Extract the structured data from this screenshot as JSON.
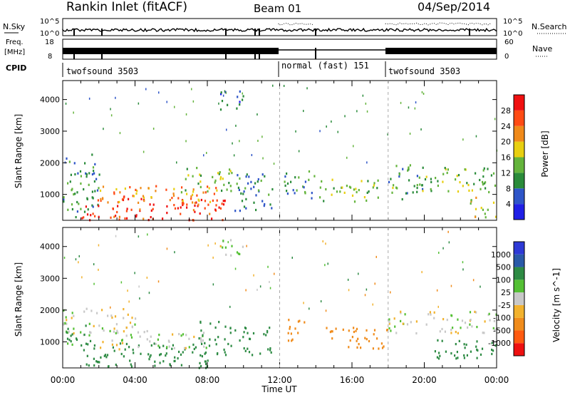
{
  "header": {
    "title": "Rankin Inlet (fitACF)",
    "beam": "Beam 01",
    "date": "04/Sep/2014"
  },
  "top_panels": {
    "nsky_label": "N.Sky",
    "nsky_ticks": [
      "10^5",
      "10^0"
    ],
    "nsearch_label": "N.Search",
    "nsearch_ticks": [
      "10^5",
      "10^0"
    ],
    "freq_label_line1": "Freq.",
    "freq_label_line2": "[MHz]",
    "freq_ticks": [
      "18",
      "8"
    ],
    "nave_label": "Nave",
    "nave_ticks": [
      "60",
      "0"
    ],
    "cpid_label": "CPID",
    "cpid_segments": [
      {
        "text": "twofsound 3503",
        "start_hr": 0,
        "end_hr": 12
      },
      {
        "text": "normal (fast) 151",
        "start_hr": 12,
        "end_hr": 18
      },
      {
        "text": "twofsound 3503",
        "start_hr": 18,
        "end_hr": 24
      }
    ]
  },
  "colors": {
    "power": [
      "#1f1fe6",
      "#2e55c8",
      "#2a8b3a",
      "#64b43c",
      "#e8cf10",
      "#f08a1a",
      "#ff4b14",
      "#f01010"
    ],
    "velocity": [
      "#ee1010",
      "#ff5a10",
      "#f08c1c",
      "#f2b22e",
      "#c8c8c8",
      "#54c034",
      "#2e8b44",
      "#2a5aa8",
      "#2e3ad6"
    ],
    "ground_scatter": "#bdbdb8"
  },
  "chart_data": [
    {
      "type": "heatmap",
      "name": "power",
      "ylabel": "Slant Range [km]",
      "xlim": [
        0,
        24
      ],
      "ylim": [
        180,
        4600
      ],
      "yticks": [
        1000,
        2000,
        3000,
        4000
      ],
      "ytick_labels": [
        "1000",
        "2000",
        "3000",
        "4000"
      ],
      "colorbar_label": "Power [dB]",
      "colorbar_ticks": [
        "28",
        "24",
        "20",
        "16",
        "12",
        "8",
        "4"
      ],
      "colorbar_range": [
        0,
        32
      ],
      "regions": [
        {
          "x0": 0.0,
          "x1": 2.0,
          "y0": 300,
          "y1": 2300,
          "value": 10
        },
        {
          "x0": 1.0,
          "x1": 9.0,
          "y0": 200,
          "y1": 1000,
          "value": 28
        },
        {
          "x0": 2.0,
          "x1": 8.5,
          "y0": 700,
          "y1": 1300,
          "value": 22
        },
        {
          "x0": 6.5,
          "x1": 9.5,
          "y0": 1100,
          "y1": 1900,
          "value": 13
        },
        {
          "x0": 9.5,
          "x1": 11.7,
          "y0": 500,
          "y1": 1800,
          "value": 9
        },
        {
          "x0": 12.2,
          "x1": 14.0,
          "y0": 900,
          "y1": 1800,
          "value": 11
        },
        {
          "x0": 14.0,
          "x1": 17.5,
          "y0": 800,
          "y1": 1500,
          "value": 14
        },
        {
          "x0": 18.0,
          "x1": 20.0,
          "y0": 800,
          "y1": 2000,
          "value": 12
        },
        {
          "x0": 20.0,
          "x1": 24.0,
          "y0": 1100,
          "y1": 1900,
          "value": 13
        },
        {
          "x0": 22.5,
          "x1": 24.0,
          "y0": 300,
          "y1": 1000,
          "value": 18
        },
        {
          "x0": 8.5,
          "x1": 10.0,
          "y0": 3700,
          "y1": 4300,
          "value": 7
        }
      ]
    },
    {
      "type": "heatmap",
      "name": "velocity",
      "ylabel": "Slant Range [km]",
      "xlabel": "Time UT",
      "xlim": [
        0,
        24
      ],
      "ylim": [
        180,
        4600
      ],
      "xticks": [
        "00:00",
        "04:00",
        "08:00",
        "12:00",
        "16:00",
        "20:00",
        "00:00"
      ],
      "yticks": [
        1000,
        2000,
        3000,
        4000
      ],
      "ytick_labels": [
        "1000",
        "2000",
        "3000",
        "4000"
      ],
      "colorbar_label": "Velocity [m s^-1]",
      "colorbar_ticks": [
        "1000",
        "500",
        "100",
        "25",
        "-25",
        "-100",
        "-500",
        "-1000"
      ],
      "regions": [
        {
          "x0": 0.0,
          "x1": 4.0,
          "y0": 1200,
          "y1": 2100,
          "value": 0
        },
        {
          "x0": 1.0,
          "x1": 9.0,
          "y0": 200,
          "y1": 1000,
          "value": 300
        },
        {
          "x0": 2.0,
          "x1": 8.0,
          "y0": 800,
          "y1": 1400,
          "value": 0
        },
        {
          "x0": 7.5,
          "x1": 9.3,
          "y0": 900,
          "y1": 1700,
          "value": 400
        },
        {
          "x0": 9.5,
          "x1": 11.5,
          "y0": 600,
          "y1": 1500,
          "value": 150
        },
        {
          "x0": 12.3,
          "x1": 13.5,
          "y0": 1000,
          "y1": 1800,
          "value": -250
        },
        {
          "x0": 14.5,
          "x1": 18.0,
          "y0": 800,
          "y1": 1500,
          "value": -250
        },
        {
          "x0": 18.0,
          "x1": 24.0,
          "y0": 1300,
          "y1": 2000,
          "value": 0
        },
        {
          "x0": 20.5,
          "x1": 24.0,
          "y0": 400,
          "y1": 1100,
          "value": 200
        },
        {
          "x0": 0.0,
          "x1": 1.5,
          "y0": 900,
          "y1": 1700,
          "value": 150
        },
        {
          "x0": 8.5,
          "x1": 10.0,
          "y0": 3700,
          "y1": 4300,
          "value": 0
        }
      ]
    }
  ]
}
